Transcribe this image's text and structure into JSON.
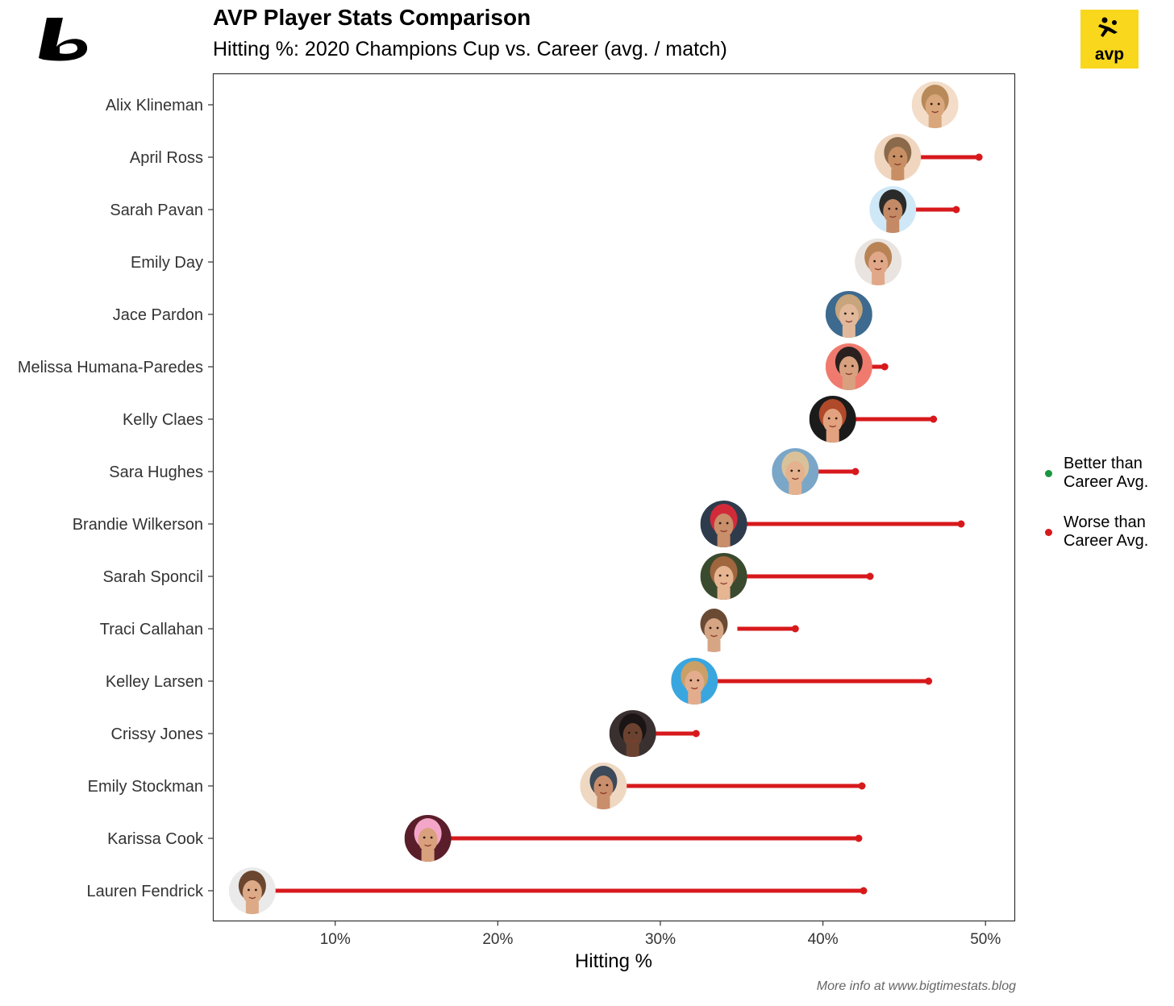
{
  "header": {
    "title": "AVP Player Stats Comparison",
    "subtitle": "Hitting %: 2020 Champions Cup vs. Career (avg. / match)"
  },
  "logos": {
    "avp_text": "avp",
    "avp_color": "#f9d71c"
  },
  "caption": "More info at www.bigtimestats.blog",
  "legend": {
    "items": [
      {
        "label_line1": "Better than",
        "label_line2": "Career Avg.",
        "color": "#1a9641"
      },
      {
        "label_line1": "Worse than",
        "label_line2": "Career Avg.",
        "color": "#d7191c"
      }
    ]
  },
  "chart_data": {
    "type": "dumbbell",
    "xlabel": "Hitting %",
    "ylabel": "",
    "xlim": [
      2.5,
      51.8
    ],
    "xticks": [
      10,
      20,
      30,
      40,
      50
    ],
    "xtick_labels": [
      "10%",
      "20%",
      "30%",
      "40%",
      "50%"
    ],
    "value_units": "percent",
    "series": [
      {
        "name": "2020 Champions Cup",
        "marker": "player photo"
      },
      {
        "name": "Career avg.",
        "marker": "dot"
      }
    ],
    "players": [
      {
        "name": "Alix Klineman",
        "cup": 46.9,
        "career": 46.9,
        "status": "worse"
      },
      {
        "name": "April Ross",
        "cup": 44.6,
        "career": 49.6,
        "status": "worse"
      },
      {
        "name": "Sarah Pavan",
        "cup": 44.3,
        "career": 48.2,
        "status": "worse"
      },
      {
        "name": "Emily Day",
        "cup": 43.4,
        "career": 43.4,
        "status": "worse"
      },
      {
        "name": "Jace Pardon",
        "cup": 41.6,
        "career": 41.6,
        "status": "worse"
      },
      {
        "name": "Melissa Humana-Paredes",
        "cup": 41.6,
        "career": 43.8,
        "status": "worse"
      },
      {
        "name": "Kelly Claes",
        "cup": 40.6,
        "career": 46.8,
        "status": "worse"
      },
      {
        "name": "Sara Hughes",
        "cup": 38.3,
        "career": 42.0,
        "status": "worse"
      },
      {
        "name": "Brandie Wilkerson",
        "cup": 33.9,
        "career": 48.5,
        "status": "worse"
      },
      {
        "name": "Sarah Sponcil",
        "cup": 33.9,
        "career": 42.9,
        "status": "worse"
      },
      {
        "name": "Traci Callahan",
        "cup": 33.3,
        "career": 38.3,
        "status": "worse"
      },
      {
        "name": "Kelley Larsen",
        "cup": 32.1,
        "career": 46.5,
        "status": "worse"
      },
      {
        "name": "Crissy Jones",
        "cup": 28.3,
        "career": 32.2,
        "status": "worse"
      },
      {
        "name": "Emily Stockman",
        "cup": 26.5,
        "career": 42.4,
        "status": "worse"
      },
      {
        "name": "Karissa Cook",
        "cup": 15.7,
        "career": 42.2,
        "status": "worse"
      },
      {
        "name": "Lauren Fendrick",
        "cup": 4.9,
        "career": 42.5,
        "status": "worse"
      }
    ],
    "colors": {
      "better": "#1a9641",
      "worse": "#d7191c"
    },
    "grid": false,
    "legend_position": "right"
  }
}
